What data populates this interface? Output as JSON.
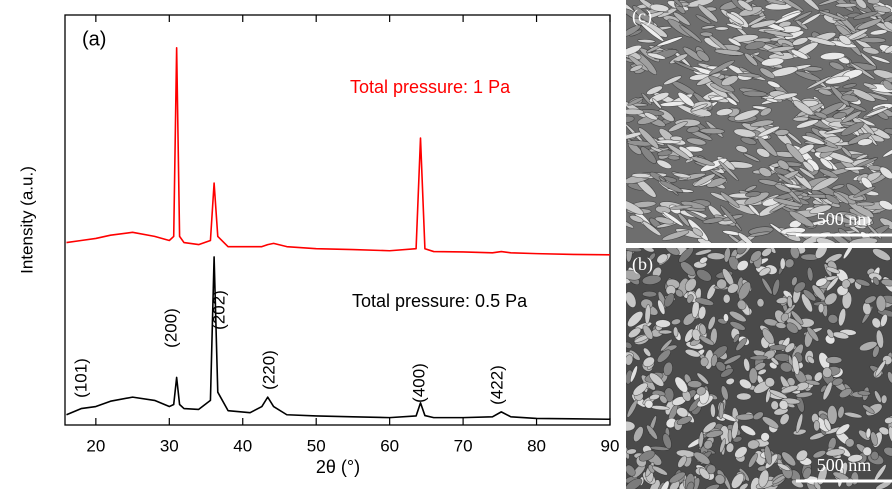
{
  "chart_data": {
    "type": "line",
    "panel_label": "(a)",
    "x_label": "2θ (°)",
    "y_label": "Intensity (a.u.)",
    "x": [
      16,
      18,
      20,
      22,
      25,
      28,
      30,
      30.6,
      31,
      31.4,
      32,
      34,
      35.6,
      36.1,
      36.6,
      38,
      41,
      42.6,
      43.4,
      44.2,
      46,
      50,
      55,
      60,
      63.6,
      64.2,
      64.8,
      66,
      70,
      74,
      75.2,
      76.5,
      80,
      85,
      90
    ],
    "series": [
      {
        "name": "Total pressure: 1 Pa",
        "color": "#ff0000",
        "values": [
          44.5,
          45,
          45.5,
          46.3,
          47,
          46,
          45,
          46,
          92,
          46,
          44.5,
          44,
          45,
          59,
          46,
          43.5,
          43.5,
          43.5,
          44,
          44.3,
          43.5,
          43,
          42.8,
          42.5,
          43,
          70,
          43,
          42.3,
          42.2,
          42,
          42.3,
          42,
          41.8,
          41.6,
          41.5
        ]
      },
      {
        "name": "Total pressure: 0.5 Pa",
        "color": "#000000",
        "values": [
          2.5,
          4,
          4.5,
          5.8,
          6.8,
          6,
          4.5,
          5,
          11.6,
          5,
          4,
          3.8,
          6,
          41,
          8,
          3.5,
          3,
          4.5,
          6.8,
          4.5,
          2.5,
          2.2,
          2,
          1.8,
          2.2,
          5.4,
          2.3,
          1.8,
          1.8,
          2,
          3.2,
          2,
          1.6,
          1.5,
          1.4
        ]
      }
    ],
    "annotations": [
      "(101)",
      "(200)",
      "(202)",
      "(220)",
      "(400)",
      "(422)"
    ],
    "xlim": [
      15.8,
      90
    ],
    "xticks": [
      20,
      30,
      40,
      50,
      60,
      70,
      80,
      90
    ],
    "ylim": [
      0,
      100
    ]
  },
  "images": [
    {
      "label": "(c)",
      "scale": "500 nm"
    },
    {
      "label": "(b)",
      "scale": "500 nm"
    }
  ]
}
